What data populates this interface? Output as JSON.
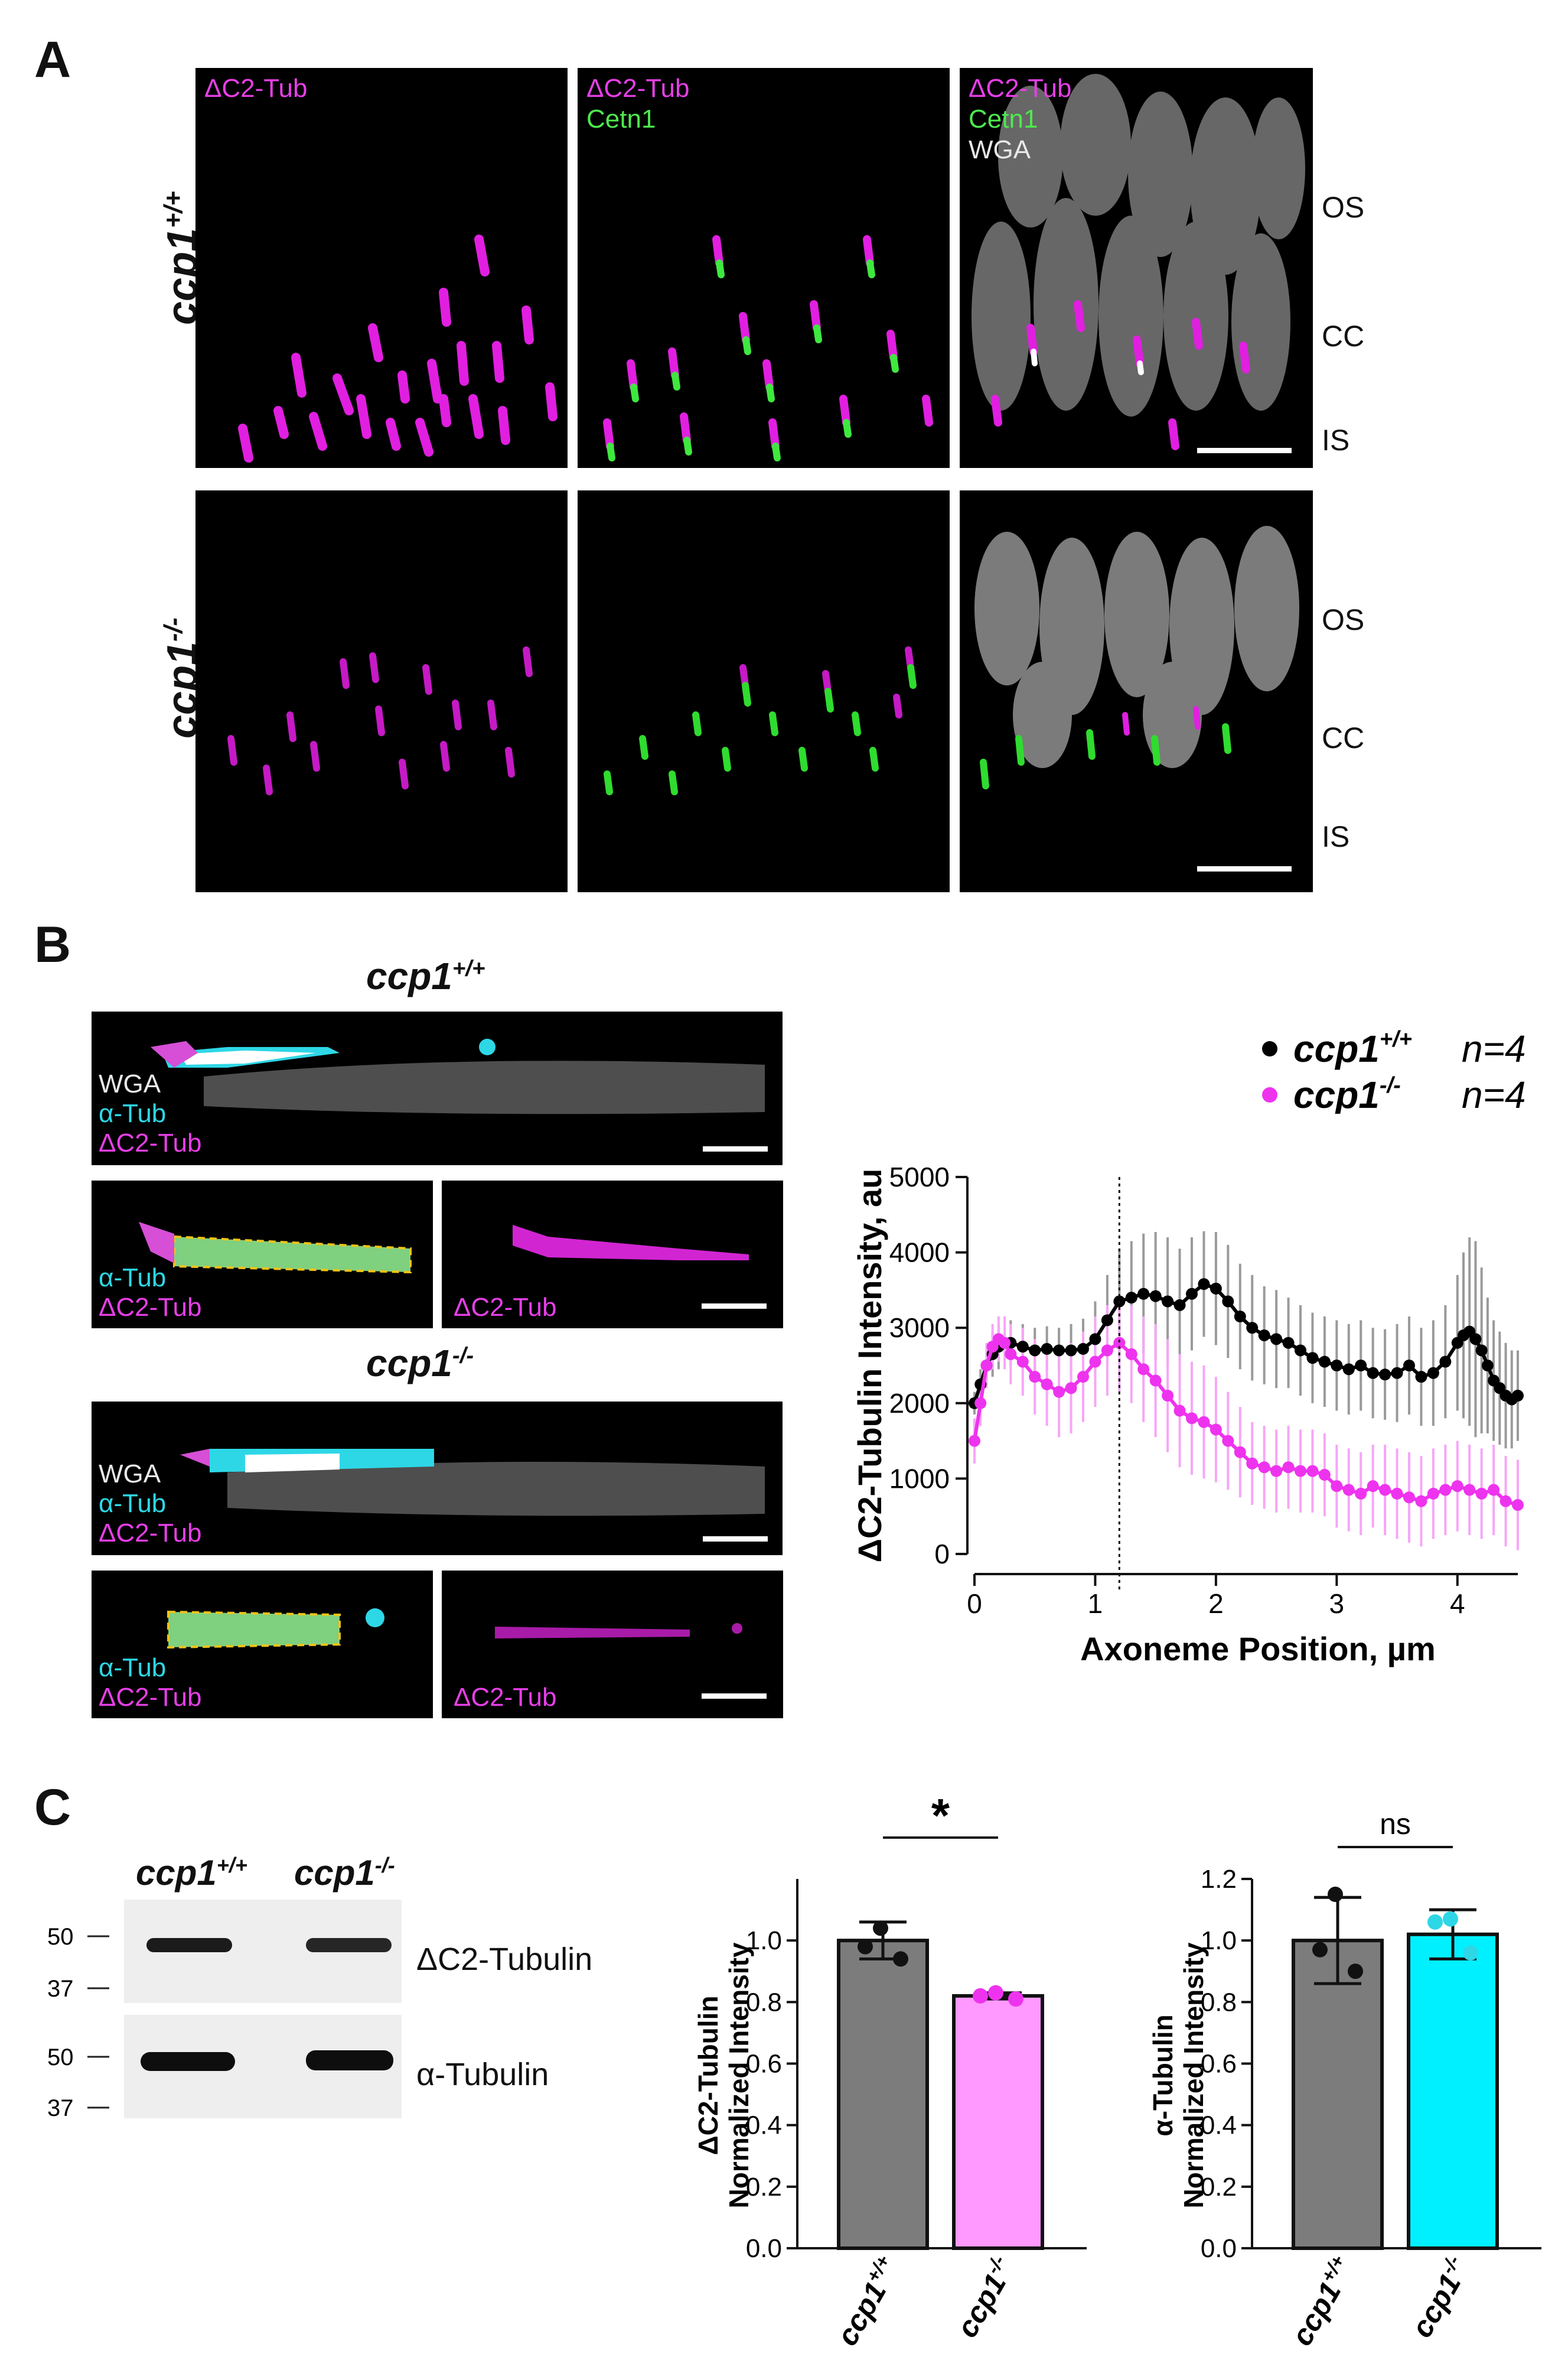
{
  "panels": {
    "a": "A",
    "b": "B",
    "c": "C"
  },
  "panel_a": {
    "row_labels": {
      "wt_base": "ccp1",
      "wt_sup": "+/+",
      "ko_base": "ccp1",
      "ko_sup": "-/-"
    },
    "channels": {
      "dc2": "ΔC2-Tub",
      "cetn1": "Cetn1",
      "wga": "WGA"
    },
    "side_labels": [
      "OS",
      "CC",
      "IS"
    ]
  },
  "panel_b": {
    "title_wt": {
      "base": "ccp1",
      "sup": "+/+"
    },
    "title_ko": {
      "base": "ccp1",
      "sup": "-/-"
    },
    "channels": {
      "wga": "WGA",
      "atub": "α-Tub",
      "dc2": "ΔC2-Tub"
    },
    "legend": [
      {
        "geno": "ccp1",
        "sup": "+/+",
        "n": "n=4",
        "color": "#000000"
      },
      {
        "geno": "ccp1",
        "sup": "-/-",
        "n": "n=4",
        "color": "#ee33ee"
      }
    ]
  },
  "panel_c": {
    "blot": {
      "lanes": [
        {
          "base": "ccp1",
          "sup": "+/+"
        },
        {
          "base": "ccp1",
          "sup": "-/-"
        }
      ],
      "markers_top": [
        "50",
        "37"
      ],
      "markers_bottom": [
        "50",
        "37"
      ],
      "band_labels": [
        "ΔC2-Tubulin",
        "α-Tubulin"
      ]
    },
    "significance": [
      "*",
      "ns"
    ]
  },
  "chart_data": [
    {
      "type": "line",
      "title": "",
      "xlabel": "Axoneme Position, µm",
      "ylabel": "ΔC2-Tubulin Intensity, au",
      "xlim": [
        0,
        4.5
      ],
      "ylim": [
        0,
        5000
      ],
      "xticks": [
        0,
        1,
        2,
        3,
        4
      ],
      "yticks": [
        0,
        1000,
        2000,
        3000,
        4000,
        5000
      ],
      "vline_x": 1.2,
      "series": [
        {
          "name": "ccp1+/+ n=4",
          "color": "#000000",
          "x": [
            0,
            0.05,
            0.1,
            0.15,
            0.2,
            0.3,
            0.4,
            0.5,
            0.6,
            0.7,
            0.8,
            0.9,
            1.0,
            1.1,
            1.2,
            1.3,
            1.4,
            1.5,
            1.6,
            1.7,
            1.8,
            1.9,
            2.0,
            2.1,
            2.2,
            2.3,
            2.4,
            2.5,
            2.6,
            2.7,
            2.8,
            2.9,
            3.0,
            3.1,
            3.2,
            3.3,
            3.4,
            3.5,
            3.6,
            3.7,
            3.8,
            3.9,
            4.0,
            4.05,
            4.1,
            4.15,
            4.2,
            4.25,
            4.3,
            4.35,
            4.4,
            4.45,
            4.5
          ],
          "y": [
            2000,
            2250,
            2500,
            2650,
            2750,
            2800,
            2750,
            2700,
            2720,
            2700,
            2700,
            2720,
            2850,
            3100,
            3350,
            3400,
            3450,
            3420,
            3350,
            3300,
            3450,
            3580,
            3520,
            3350,
            3150,
            3000,
            2900,
            2850,
            2800,
            2700,
            2600,
            2550,
            2500,
            2450,
            2500,
            2400,
            2380,
            2400,
            2500,
            2350,
            2400,
            2550,
            2800,
            2900,
            2950,
            2850,
            2700,
            2500,
            2300,
            2200,
            2100,
            2050,
            2100
          ],
          "err": [
            150,
            200,
            250,
            300,
            300,
            300,
            300,
            300,
            300,
            300,
            350,
            400,
            500,
            600,
            700,
            750,
            800,
            850,
            850,
            750,
            750,
            700,
            750,
            750,
            700,
            700,
            650,
            650,
            600,
            600,
            600,
            600,
            600,
            600,
            600,
            600,
            600,
            650,
            650,
            650,
            700,
            750,
            900,
            1100,
            1250,
            1300,
            1100,
            900,
            800,
            750,
            700,
            650,
            600
          ]
        },
        {
          "name": "ccp1-/- n=4",
          "color": "#ee33ee",
          "x": [
            0,
            0.05,
            0.1,
            0.15,
            0.2,
            0.25,
            0.3,
            0.4,
            0.5,
            0.6,
            0.7,
            0.8,
            0.9,
            1.0,
            1.1,
            1.2,
            1.3,
            1.4,
            1.5,
            1.6,
            1.7,
            1.8,
            1.9,
            2.0,
            2.1,
            2.2,
            2.3,
            2.4,
            2.5,
            2.6,
            2.7,
            2.8,
            2.9,
            3.0,
            3.1,
            3.2,
            3.3,
            3.4,
            3.5,
            3.6,
            3.7,
            3.8,
            3.9,
            4.0,
            4.1,
            4.2,
            4.3,
            4.4,
            4.5
          ],
          "y": [
            1500,
            2000,
            2500,
            2750,
            2850,
            2800,
            2650,
            2550,
            2350,
            2250,
            2150,
            2200,
            2350,
            2550,
            2700,
            2800,
            2650,
            2450,
            2300,
            2100,
            1900,
            1800,
            1750,
            1650,
            1500,
            1350,
            1200,
            1150,
            1100,
            1150,
            1100,
            1100,
            1050,
            900,
            850,
            800,
            900,
            850,
            800,
            750,
            700,
            800,
            850,
            900,
            850,
            800,
            850,
            700,
            650
          ],
          "err": [
            300,
            300,
            300,
            300,
            300,
            350,
            400,
            450,
            500,
            550,
            600,
            600,
            600,
            600,
            600,
            650,
            650,
            700,
            750,
            750,
            750,
            750,
            750,
            700,
            650,
            600,
            550,
            550,
            550,
            550,
            550,
            550,
            550,
            550,
            550,
            550,
            550,
            600,
            600,
            600,
            600,
            600,
            600,
            600,
            600,
            600,
            600,
            600,
            600
          ]
        }
      ]
    },
    {
      "type": "bar",
      "title": "",
      "categories": [
        "ccp1+/+",
        "ccp1-/-"
      ],
      "values": [
        1.0,
        0.82
      ],
      "errors": [
        0.06,
        0.01
      ],
      "points": [
        [
          1.04,
          0.98,
          0.94
        ],
        [
          0.83,
          0.82,
          0.81
        ]
      ],
      "bar_colors": [
        "#7c7c7c",
        "#ff99ff"
      ],
      "point_colors": [
        "#111111",
        "#ee33ee"
      ],
      "xlabel": "",
      "ylabel": "ΔC2-Tubulin Normalized Intensity",
      "ylabel_lines": [
        "ΔC2-Tubulin",
        "Normalized Intensity"
      ],
      "ylim": [
        0,
        1.2
      ],
      "yticks": [
        "0.0",
        "0.2",
        "0.4",
        "0.6",
        "0.8",
        "1.0"
      ],
      "significance": "*"
    },
    {
      "type": "bar",
      "title": "",
      "categories": [
        "ccp1+/+",
        "ccp1-/-"
      ],
      "values": [
        1.0,
        1.02
      ],
      "errors": [
        0.14,
        0.08
      ],
      "points": [
        [
          1.15,
          0.97,
          0.9
        ],
        [
          1.07,
          1.06,
          0.96
        ]
      ],
      "bar_colors": [
        "#7c7c7c",
        "#00f0ff"
      ],
      "point_colors": [
        "#111111",
        "#2ed7e6"
      ],
      "xlabel": "",
      "ylabel": "α-Tubulin Normalized Intensity",
      "ylabel_lines": [
        "α-Tubulin",
        "Normalized Intensity"
      ],
      "ylim": [
        0,
        1.2
      ],
      "yticks": [
        "0.0",
        "0.2",
        "0.4",
        "0.6",
        "0.8",
        "1.0",
        "1.2"
      ],
      "significance": "ns"
    }
  ]
}
